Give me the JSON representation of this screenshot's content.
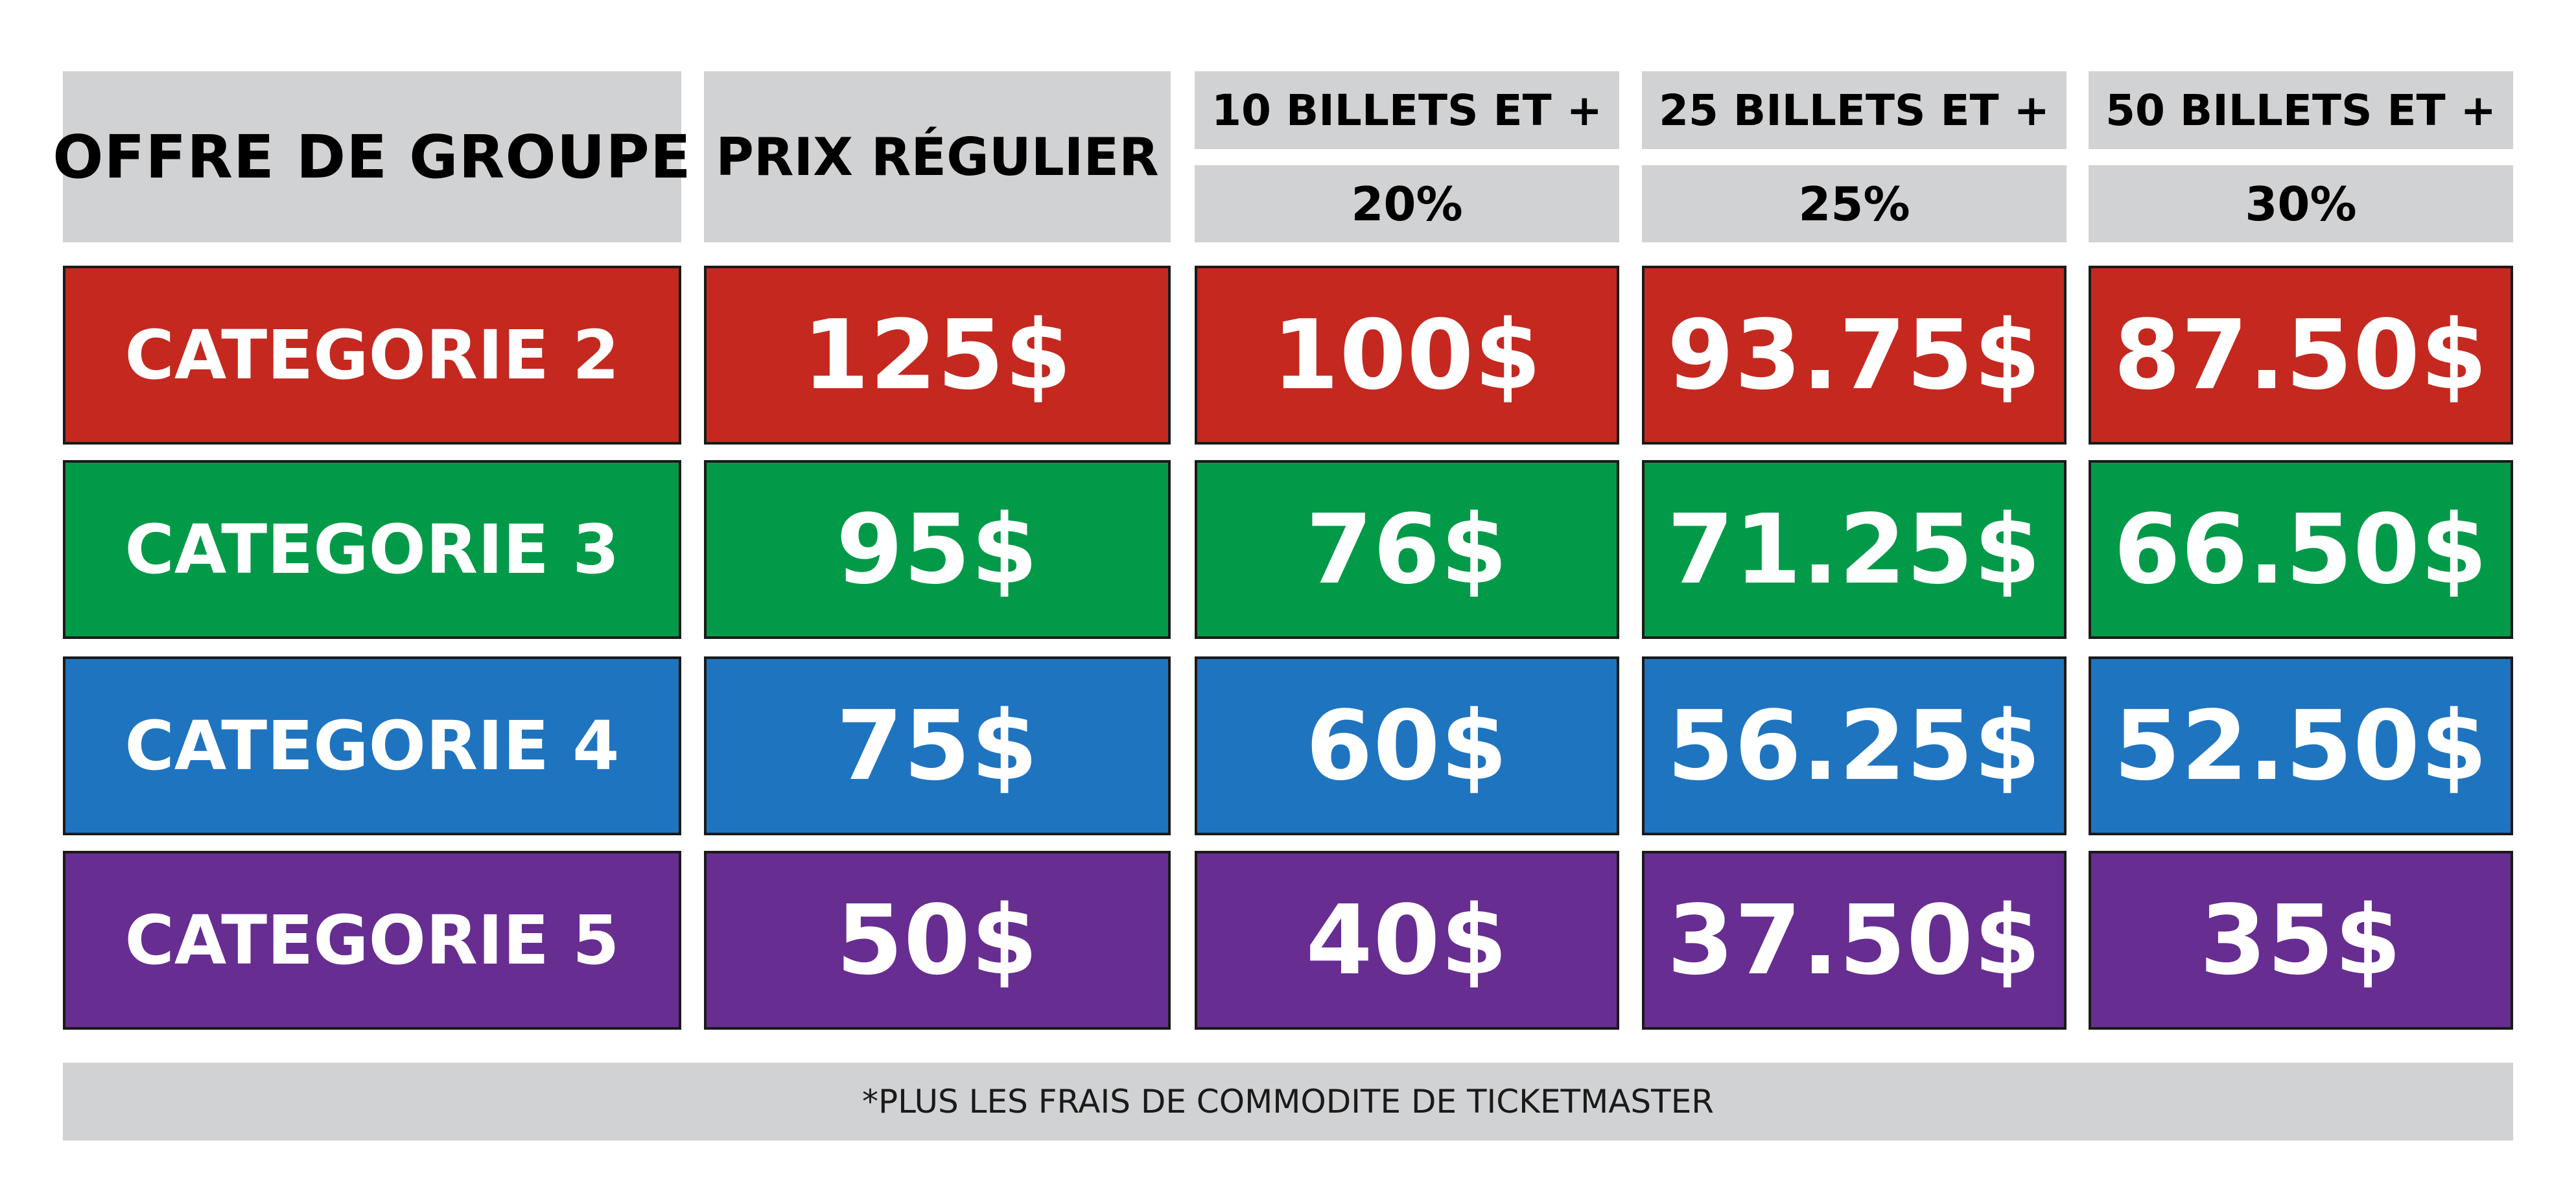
{
  "header": {
    "title": "OFFRE DE GROUPE",
    "regular_label": "PRIX RÉGULIER",
    "tiers": [
      {
        "label": "10 BILLETS ET +",
        "discount": "20%"
      },
      {
        "label": "25 BILLETS ET +",
        "discount": "25%"
      },
      {
        "label": "50 BILLETS ET +",
        "discount": "30%"
      }
    ]
  },
  "rows": [
    {
      "category": "CATEGORIE 2",
      "color": "#c4281f",
      "prices": [
        "125$",
        "100$",
        "93.75$",
        "87.50$"
      ]
    },
    {
      "category": "CATEGORIE 3",
      "color": "#029a48",
      "prices": [
        "95$",
        "76$",
        "71.25$",
        "66.50$"
      ]
    },
    {
      "category": "CATEGORIE 4",
      "color": "#1f74c0",
      "prices": [
        "75$",
        "60$",
        "56.25$",
        "52.50$"
      ]
    },
    {
      "category": "CATEGORIE 5",
      "color": "#672d91",
      "prices": [
        "50$",
        "40$",
        "37.50$",
        "35$"
      ]
    }
  ],
  "footer": {
    "note": "*PLUS LES FRAIS DE COMMODITE DE TICKETMASTER"
  }
}
